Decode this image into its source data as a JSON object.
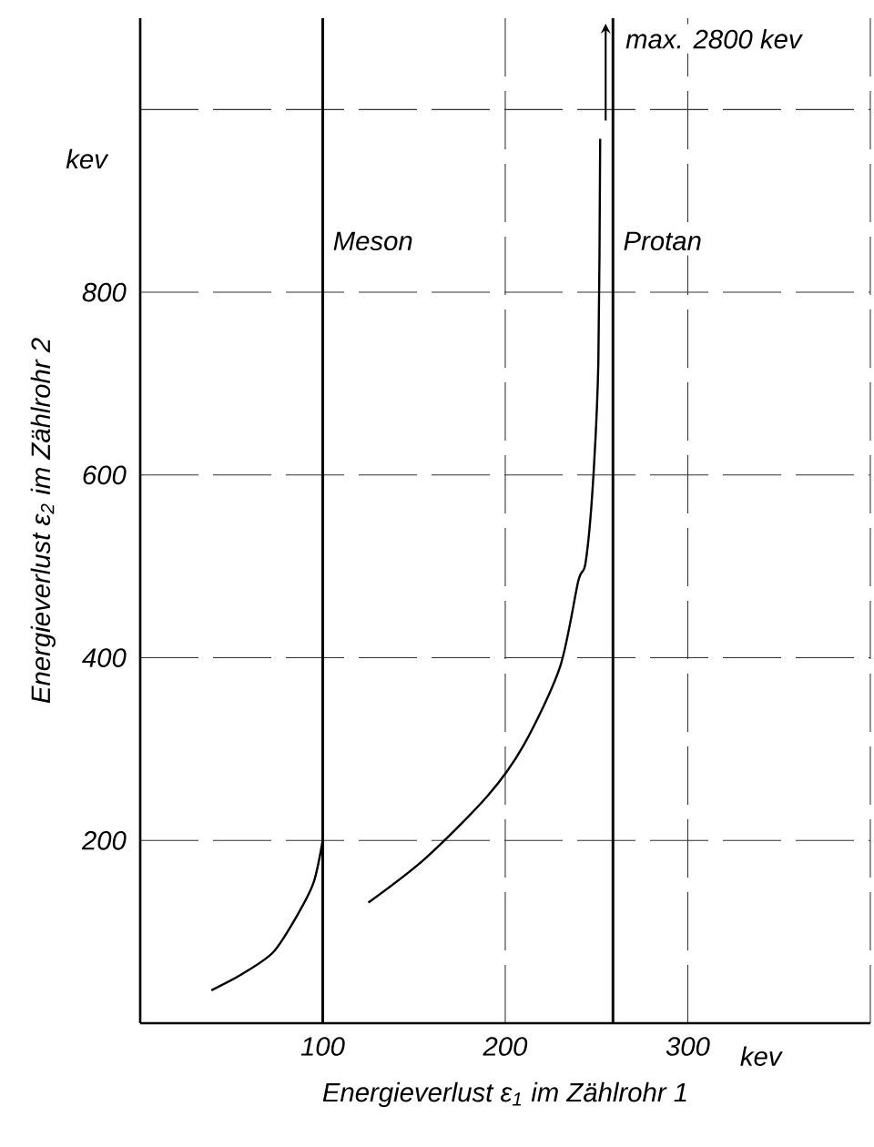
{
  "chart_data": {
    "type": "line",
    "xlabel": "Energieverlust ε$_{1}$ im Zählrohr 1",
    "ylabel": "Energieverlust ε$_{2}$ im Zählrohr 2",
    "xlim": [
      0,
      400
    ],
    "ylim": [
      0,
      1100
    ],
    "xticks": [
      100,
      200,
      300,
      {
        "value": 400,
        "label": null
      }
    ],
    "yticks": [
      200,
      400,
      600,
      800,
      {
        "value": 1000,
        "label": null
      }
    ],
    "grid": true,
    "marker": "none",
    "line_style": "solid",
    "series": [
      {
        "color": "#000000",
        "x": [
          39,
          56,
          73,
          86,
          95,
          100
        ],
        "values": [
          36,
          54,
          78,
          118,
          154,
          200
        ]
      },
      {
        "color": "#000000",
        "x": [
          125,
          156,
          190,
          210,
          230,
          240,
          244,
          248,
          251,
          252
        ],
        "values": [
          132,
          180,
          248,
          304,
          390,
          484,
          504,
          590,
          724,
          968
        ]
      }
    ],
    "ref_lines": [
      {
        "axis": "x",
        "value": 100,
        "label": "Meson",
        "color": "#000000"
      },
      {
        "axis": "x",
        "value": 259,
        "label": "Protan",
        "color": "#000000"
      }
    ],
    "annotations": [
      "kev",
      "kev",
      {
        "text": "max. 2800 kev",
        "x": 255,
        "y": 1094
      }
    ]
  }
}
